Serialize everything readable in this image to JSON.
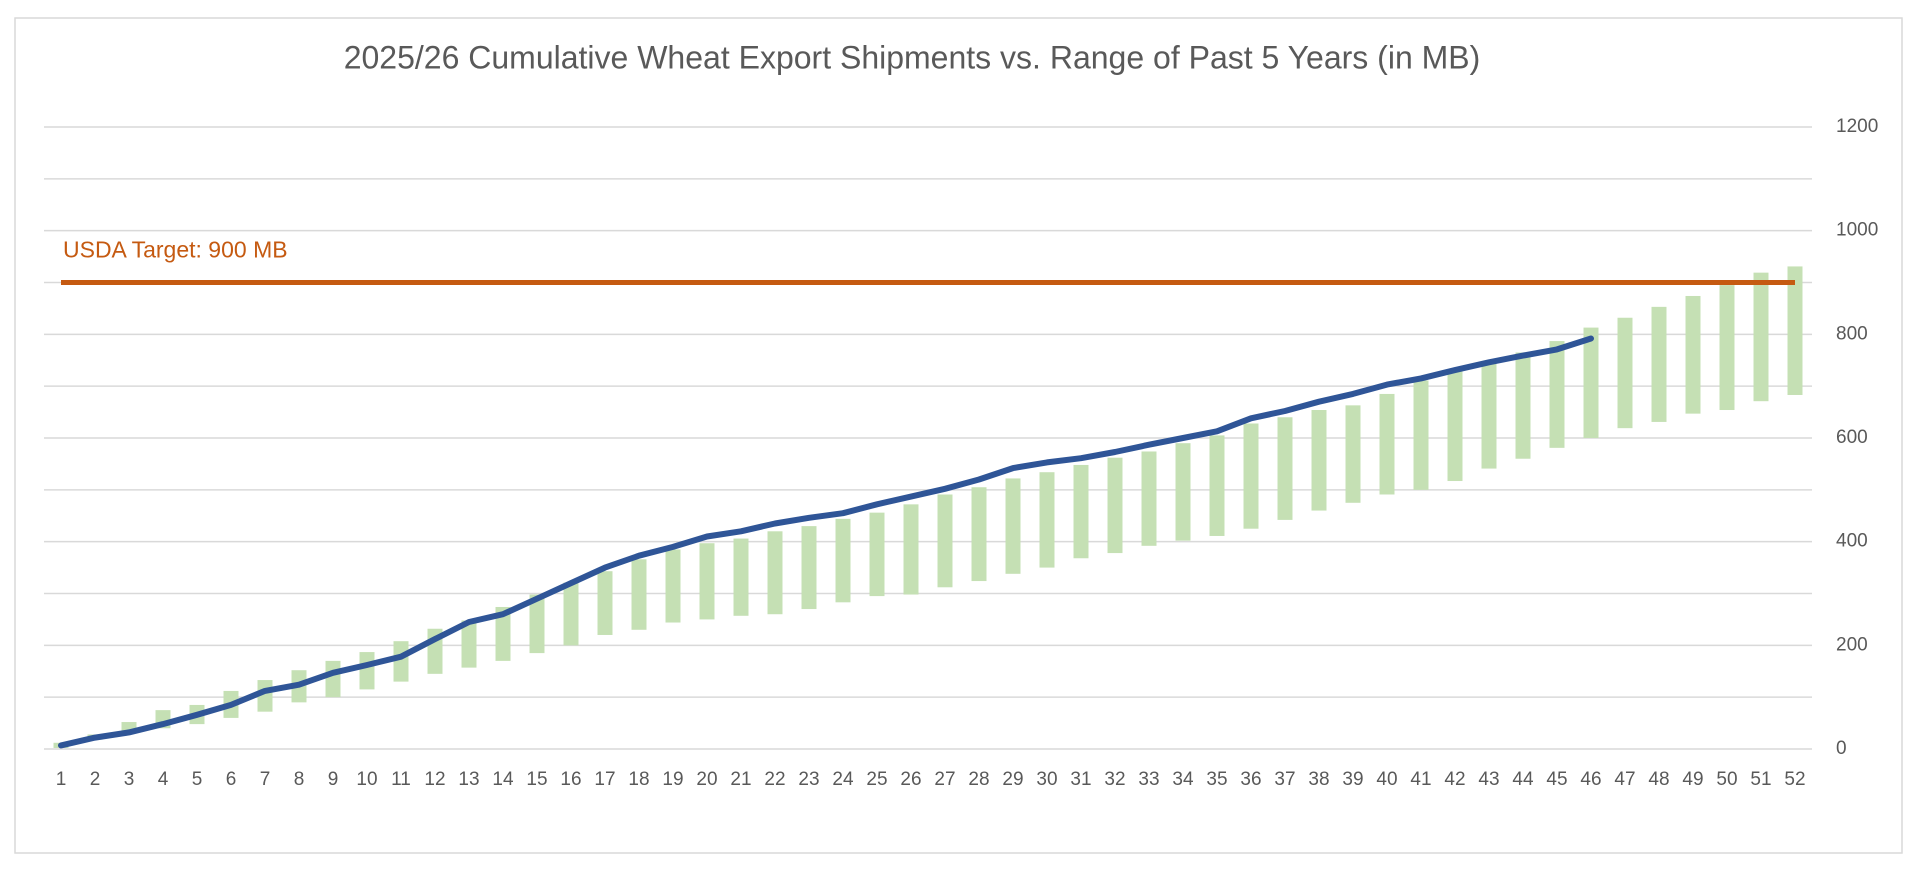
{
  "chart_data": {
    "type": "floating-bar-line",
    "title": "2025/26 Cumulative Wheat Export Shipments vs. Range of Past 5 Years (in MB)",
    "categories": [
      "1",
      "2",
      "3",
      "4",
      "5",
      "6",
      "7",
      "8",
      "9",
      "10",
      "11",
      "12",
      "13",
      "14",
      "15",
      "16",
      "17",
      "18",
      "19",
      "20",
      "21",
      "22",
      "23",
      "24",
      "25",
      "26",
      "27",
      "28",
      "29",
      "30",
      "31",
      "32",
      "33",
      "34",
      "35",
      "36",
      "37",
      "38",
      "39",
      "40",
      "41",
      "42",
      "43",
      "44",
      "45",
      "46",
      "47",
      "48",
      "49",
      "50",
      "51",
      "52"
    ],
    "range": {
      "color": "#c5e0b4",
      "low": [
        2,
        18,
        30,
        40,
        48,
        60,
        72,
        90,
        100,
        115,
        130,
        145,
        157,
        170,
        185,
        200,
        220,
        230,
        244,
        250,
        257,
        260,
        270,
        283,
        295,
        298,
        312,
        324,
        338,
        350,
        368,
        378,
        392,
        402,
        411,
        425,
        442,
        460,
        475,
        491,
        500,
        517,
        541,
        560,
        581,
        600,
        619,
        631,
        647,
        654,
        671,
        683
      ],
      "high": [
        12,
        28,
        52,
        75,
        85,
        112,
        133,
        152,
        170,
        187,
        208,
        232,
        248,
        274,
        298,
        321,
        343,
        366,
        385,
        397,
        406,
        420,
        430,
        444,
        456,
        472,
        491,
        505,
        522,
        534,
        548,
        562,
        574,
        590,
        605,
        628,
        640,
        654,
        663,
        685,
        711,
        730,
        746,
        765,
        787,
        813,
        832,
        853,
        874,
        895,
        919,
        931
      ]
    },
    "line": {
      "color": "#2f5597",
      "values": [
        7,
        22,
        32,
        48,
        66,
        85,
        112,
        124,
        147,
        162,
        178,
        212,
        245,
        260,
        290,
        320,
        350,
        373,
        390,
        410,
        420,
        435,
        446,
        455,
        472,
        487,
        502,
        520,
        542,
        553,
        561,
        573,
        587,
        600,
        613,
        638,
        652,
        670,
        685,
        703,
        715,
        731,
        746,
        759,
        771,
        792,
        null,
        null,
        null,
        null,
        null,
        null
      ]
    },
    "target": {
      "value": 900,
      "label": "USDA Target: 900 MB",
      "color": "#c55a11"
    },
    "ylim": [
      0,
      1200
    ],
    "yticks": [
      0,
      200,
      400,
      600,
      800,
      1000,
      1200
    ],
    "grid_lines": [
      0,
      100,
      200,
      300,
      400,
      500,
      600,
      700,
      800,
      900,
      1000,
      1100,
      1200
    ],
    "y_axis_side": "right"
  }
}
